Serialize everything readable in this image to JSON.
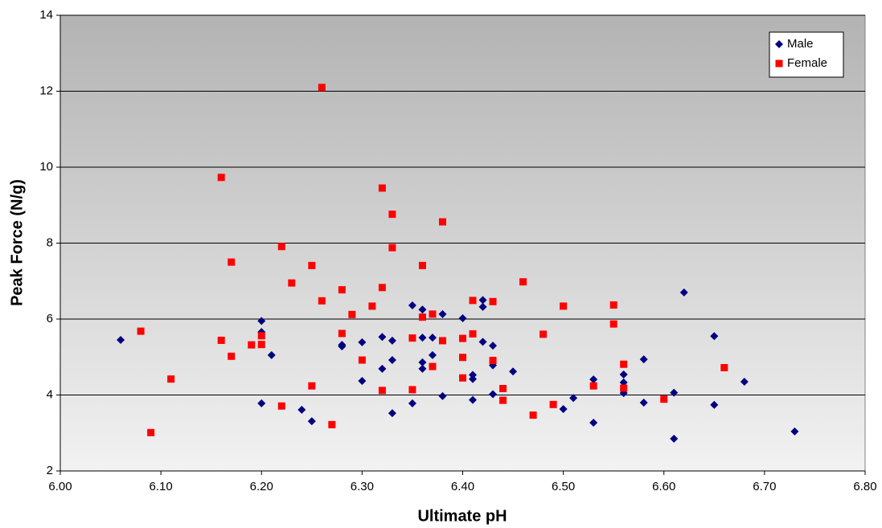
{
  "chart_data": {
    "type": "scatter",
    "xlabel": "Ultimate pH",
    "ylabel": "Peak Force (N/g)",
    "xlim": [
      6.0,
      6.8
    ],
    "xticks": [
      {
        "value": 6.0,
        "label": "6.00"
      },
      {
        "value": 6.1,
        "label": "6.10"
      },
      {
        "value": 6.2,
        "label": "6.20"
      },
      {
        "value": 6.3,
        "label": "6.30"
      },
      {
        "value": 6.4,
        "label": "6.40"
      },
      {
        "value": 6.5,
        "label": "6.50"
      },
      {
        "value": 6.6,
        "label": "6.60"
      },
      {
        "value": 6.7,
        "label": "6.70"
      },
      {
        "value": 6.8,
        "label": "6.80"
      }
    ],
    "ylim": [
      2,
      14
    ],
    "yticks": [
      2,
      4,
      6,
      8,
      10,
      12,
      14
    ],
    "grid": true,
    "legend": "top-right",
    "series": [
      {
        "name": "Male",
        "color": "#000080",
        "marker": "diamond",
        "x": [
          6.06,
          6.2,
          6.2,
          6.2,
          6.21,
          6.24,
          6.25,
          6.28,
          6.28,
          6.3,
          6.3,
          6.32,
          6.32,
          6.33,
          6.33,
          6.33,
          6.35,
          6.35,
          6.36,
          6.36,
          6.36,
          6.36,
          6.37,
          6.37,
          6.38,
          6.38,
          6.4,
          6.41,
          6.41,
          6.41,
          6.42,
          6.42,
          6.42,
          6.43,
          6.43,
          6.43,
          6.45,
          6.5,
          6.51,
          6.53,
          6.53,
          6.56,
          6.56,
          6.56,
          6.58,
          6.58,
          6.61,
          6.61,
          6.62,
          6.65,
          6.65,
          6.68,
          6.73
        ],
        "values": [
          5.45,
          5.95,
          5.66,
          3.78,
          5.05,
          3.61,
          3.31,
          5.32,
          5.28,
          5.39,
          4.37,
          5.53,
          4.69,
          5.43,
          4.92,
          3.52,
          6.36,
          3.78,
          6.25,
          5.51,
          4.86,
          4.69,
          5.51,
          5.05,
          6.13,
          3.97,
          6.02,
          4.53,
          4.42,
          3.87,
          6.5,
          6.32,
          5.4,
          5.3,
          4.78,
          4.02,
          4.62,
          3.63,
          3.92,
          4.41,
          3.27,
          4.54,
          4.33,
          4.05,
          4.94,
          3.8,
          4.06,
          2.85,
          6.7,
          5.55,
          3.74,
          4.35,
          3.04
        ]
      },
      {
        "name": "Female",
        "color": "#ff0000",
        "marker": "square",
        "x": [
          6.08,
          6.09,
          6.11,
          6.16,
          6.16,
          6.17,
          6.17,
          6.19,
          6.2,
          6.2,
          6.22,
          6.22,
          6.23,
          6.25,
          6.25,
          6.26,
          6.26,
          6.27,
          6.28,
          6.28,
          6.29,
          6.3,
          6.31,
          6.32,
          6.32,
          6.32,
          6.33,
          6.33,
          6.35,
          6.35,
          6.36,
          6.36,
          6.37,
          6.37,
          6.38,
          6.38,
          6.4,
          6.4,
          6.4,
          6.41,
          6.41,
          6.43,
          6.43,
          6.44,
          6.44,
          6.46,
          6.47,
          6.48,
          6.49,
          6.5,
          6.53,
          6.55,
          6.55,
          6.56,
          6.56,
          6.6,
          6.66
        ],
        "values": [
          5.68,
          3.01,
          4.42,
          9.73,
          5.44,
          7.5,
          5.02,
          5.32,
          5.56,
          5.33,
          7.91,
          3.71,
          6.95,
          7.41,
          4.24,
          12.1,
          6.48,
          3.22,
          6.77,
          5.62,
          6.12,
          4.92,
          6.34,
          9.45,
          6.83,
          4.12,
          8.76,
          7.88,
          5.5,
          4.14,
          7.41,
          6.05,
          6.13,
          4.75,
          8.56,
          5.43,
          5.49,
          4.99,
          4.45,
          6.49,
          5.61,
          6.46,
          4.91,
          4.17,
          3.86,
          6.98,
          3.47,
          5.6,
          3.75,
          6.34,
          4.24,
          6.37,
          5.87,
          4.81,
          4.18,
          3.89,
          4.72
        ]
      }
    ]
  }
}
